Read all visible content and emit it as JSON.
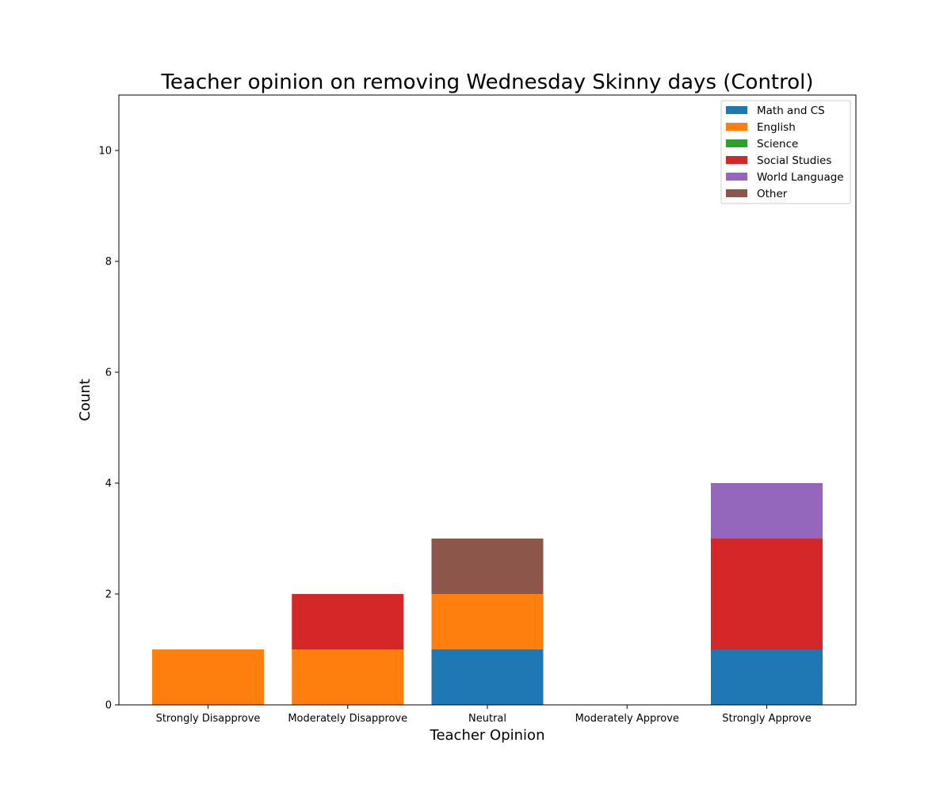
{
  "chart_data": {
    "type": "bar",
    "stacked": true,
    "title": "Teacher opinion on removing Wednesday Skinny days (Control)",
    "xlabel": "Teacher Opinion",
    "ylabel": "Count",
    "ylim": [
      0,
      11
    ],
    "yticks": [
      0,
      2,
      4,
      6,
      8,
      10
    ],
    "grid": false,
    "legend_position": "top-right",
    "categories": [
      "Strongly Disapprove",
      "Moderately Disapprove",
      "Neutral",
      "Moderately Approve",
      "Strongly Approve"
    ],
    "series": [
      {
        "name": "Math and CS",
        "color": "#1f77b4",
        "values": [
          0,
          0,
          1,
          0,
          1
        ]
      },
      {
        "name": "English",
        "color": "#ff7f0e",
        "values": [
          1,
          1,
          1,
          0,
          0
        ]
      },
      {
        "name": "Science",
        "color": "#2ca02c",
        "values": [
          0,
          0,
          0,
          0,
          0
        ]
      },
      {
        "name": "Social Studies",
        "color": "#d62728",
        "values": [
          0,
          1,
          0,
          0,
          2
        ]
      },
      {
        "name": "World Language",
        "color": "#9467bd",
        "values": [
          0,
          0,
          0,
          0,
          1
        ]
      },
      {
        "name": "Other",
        "color": "#8c564b",
        "values": [
          0,
          0,
          1,
          0,
          0
        ]
      }
    ]
  }
}
